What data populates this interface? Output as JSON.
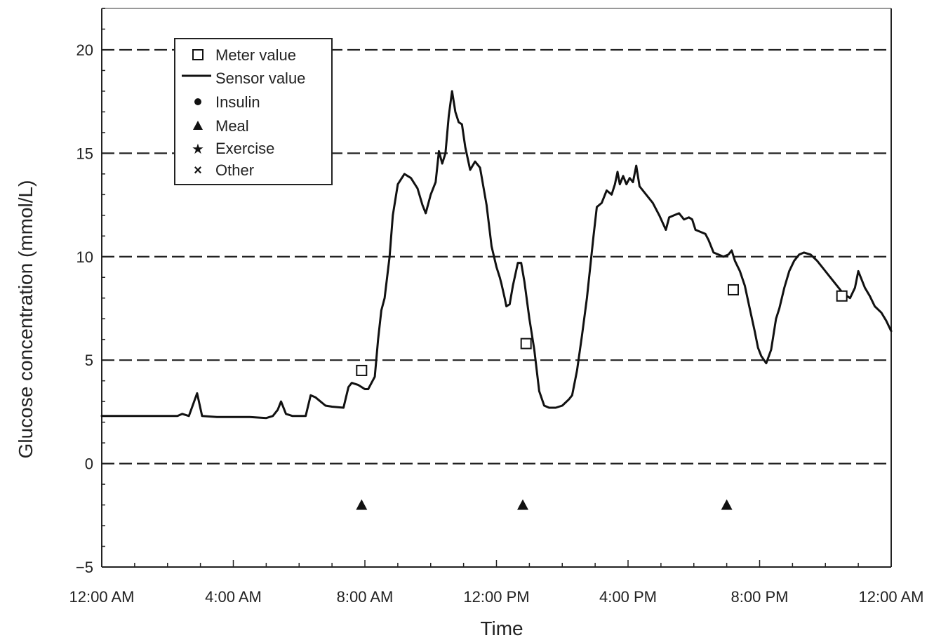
{
  "chart_data": {
    "type": "line",
    "xlabel": "Time",
    "ylabel": "Glucose concentration (mmol/L)",
    "xlim": [
      0,
      24
    ],
    "ylim": [
      -5,
      22
    ],
    "grid": "dashed horizontal lines at 0, 5, 10, 15, 20",
    "x_ticks": [
      {
        "value": 0,
        "label": "12:00 AM"
      },
      {
        "value": 4,
        "label": "4:00 AM"
      },
      {
        "value": 8,
        "label": "8:00 AM"
      },
      {
        "value": 12,
        "label": "12:00 PM"
      },
      {
        "value": 16,
        "label": "4:00 PM"
      },
      {
        "value": 20,
        "label": "8:00 PM"
      },
      {
        "value": 24,
        "label": "12:00 AM"
      }
    ],
    "y_ticks": [
      {
        "value": -5,
        "label": "−5"
      },
      {
        "value": 0,
        "label": "0"
      },
      {
        "value": 5,
        "label": "5"
      },
      {
        "value": 10,
        "label": "10"
      },
      {
        "value": 15,
        "label": "15"
      },
      {
        "value": 20,
        "label": "20"
      }
    ],
    "legend": {
      "placement": "top-left",
      "entries": [
        {
          "symbol": "square",
          "label": "Meter value"
        },
        {
          "symbol": "line",
          "label": "Sensor value"
        },
        {
          "symbol": "circle",
          "label": "Insulin"
        },
        {
          "symbol": "triangle",
          "label": "Meal"
        },
        {
          "symbol": "star",
          "label": "Exercise"
        },
        {
          "symbol": "cross",
          "label": "Other"
        }
      ]
    },
    "sensor_series": {
      "name": "Sensor value",
      "color": "#111111",
      "points": [
        [
          0,
          2.3
        ],
        [
          1,
          2.3
        ],
        [
          2,
          2.3
        ],
        [
          2.3,
          2.3
        ],
        [
          2.45,
          2.4
        ],
        [
          2.65,
          2.3
        ],
        [
          2.9,
          3.4
        ],
        [
          3.05,
          2.3
        ],
        [
          3.5,
          2.25
        ],
        [
          4,
          2.25
        ],
        [
          4.5,
          2.25
        ],
        [
          5,
          2.2
        ],
        [
          5.2,
          2.3
        ],
        [
          5.35,
          2.6
        ],
        [
          5.45,
          3.0
        ],
        [
          5.6,
          2.4
        ],
        [
          5.8,
          2.3
        ],
        [
          6.0,
          2.3
        ],
        [
          6.2,
          2.3
        ],
        [
          6.35,
          3.3
        ],
        [
          6.5,
          3.2
        ],
        [
          6.8,
          2.8
        ],
        [
          7.0,
          2.75
        ],
        [
          7.35,
          2.7
        ],
        [
          7.5,
          3.7
        ],
        [
          7.6,
          3.9
        ],
        [
          7.8,
          3.8
        ],
        [
          8.0,
          3.6
        ],
        [
          8.1,
          3.6
        ],
        [
          8.3,
          4.2
        ],
        [
          8.4,
          6.0
        ],
        [
          8.5,
          7.4
        ],
        [
          8.6,
          8.0
        ],
        [
          8.75,
          10.0
        ],
        [
          8.85,
          12.0
        ],
        [
          9.0,
          13.5
        ],
        [
          9.2,
          14.0
        ],
        [
          9.4,
          13.8
        ],
        [
          9.6,
          13.3
        ],
        [
          9.75,
          12.5
        ],
        [
          9.85,
          12.1
        ],
        [
          10.0,
          13.0
        ],
        [
          10.15,
          13.6
        ],
        [
          10.25,
          15.1
        ],
        [
          10.35,
          14.5
        ],
        [
          10.45,
          15.0
        ],
        [
          10.55,
          16.8
        ],
        [
          10.65,
          18.0
        ],
        [
          10.75,
          17.0
        ],
        [
          10.85,
          16.5
        ],
        [
          10.95,
          16.4
        ],
        [
          11.05,
          15.3
        ],
        [
          11.2,
          14.2
        ],
        [
          11.35,
          14.6
        ],
        [
          11.5,
          14.3
        ],
        [
          11.7,
          12.5
        ],
        [
          11.85,
          10.5
        ],
        [
          12.0,
          9.5
        ],
        [
          12.1,
          9.0
        ],
        [
          12.15,
          8.7
        ],
        [
          12.25,
          8.0
        ],
        [
          12.3,
          7.6
        ],
        [
          12.4,
          7.7
        ],
        [
          12.5,
          8.6
        ],
        [
          12.65,
          9.7
        ],
        [
          12.75,
          9.7
        ],
        [
          12.85,
          8.8
        ],
        [
          13.0,
          7.0
        ],
        [
          13.15,
          5.5
        ],
        [
          13.3,
          3.5
        ],
        [
          13.45,
          2.8
        ],
        [
          13.6,
          2.7
        ],
        [
          13.8,
          2.7
        ],
        [
          14.0,
          2.8
        ],
        [
          14.2,
          3.1
        ],
        [
          14.3,
          3.3
        ],
        [
          14.45,
          4.5
        ],
        [
          14.6,
          6.2
        ],
        [
          14.75,
          8.0
        ],
        [
          14.85,
          9.5
        ],
        [
          14.95,
          11.0
        ],
        [
          15.05,
          12.4
        ],
        [
          15.2,
          12.6
        ],
        [
          15.35,
          13.2
        ],
        [
          15.5,
          13.0
        ],
        [
          15.6,
          13.5
        ],
        [
          15.68,
          14.1
        ],
        [
          15.75,
          13.5
        ],
        [
          15.85,
          13.9
        ],
        [
          15.95,
          13.5
        ],
        [
          16.05,
          13.8
        ],
        [
          16.15,
          13.6
        ],
        [
          16.25,
          14.4
        ],
        [
          16.35,
          13.4
        ],
        [
          16.55,
          13.0
        ],
        [
          16.75,
          12.6
        ],
        [
          16.95,
          12.0
        ],
        [
          17.15,
          11.3
        ],
        [
          17.25,
          11.9
        ],
        [
          17.4,
          12.0
        ],
        [
          17.55,
          12.1
        ],
        [
          17.7,
          11.8
        ],
        [
          17.85,
          11.9
        ],
        [
          17.95,
          11.8
        ],
        [
          18.05,
          11.3
        ],
        [
          18.2,
          11.2
        ],
        [
          18.35,
          11.1
        ],
        [
          18.45,
          10.8
        ],
        [
          18.6,
          10.2
        ],
        [
          18.75,
          10.1
        ],
        [
          18.9,
          10.0
        ],
        [
          19.05,
          10.1
        ],
        [
          19.15,
          10.3
        ],
        [
          19.25,
          9.8
        ],
        [
          19.4,
          9.3
        ],
        [
          19.55,
          8.6
        ],
        [
          19.7,
          7.5
        ],
        [
          19.85,
          6.4
        ],
        [
          19.95,
          5.6
        ],
        [
          20.05,
          5.2
        ],
        [
          20.2,
          4.85
        ],
        [
          20.35,
          5.5
        ],
        [
          20.5,
          7.0
        ],
        [
          20.6,
          7.5
        ],
        [
          20.75,
          8.5
        ],
        [
          20.9,
          9.3
        ],
        [
          21.05,
          9.8
        ],
        [
          21.2,
          10.1
        ],
        [
          21.35,
          10.2
        ],
        [
          21.55,
          10.1
        ],
        [
          21.75,
          9.8
        ],
        [
          21.95,
          9.4
        ],
        [
          22.15,
          9.0
        ],
        [
          22.35,
          8.6
        ],
        [
          22.55,
          8.2
        ],
        [
          22.75,
          8.0
        ],
        [
          22.9,
          8.5
        ],
        [
          23.0,
          9.3
        ],
        [
          23.1,
          8.9
        ],
        [
          23.2,
          8.5
        ],
        [
          23.35,
          8.1
        ],
        [
          23.5,
          7.6
        ],
        [
          23.7,
          7.3
        ],
        [
          23.85,
          6.9
        ],
        [
          24.0,
          6.4
        ]
      ]
    },
    "meter_values": {
      "name": "Meter value",
      "points": [
        [
          7.9,
          4.5
        ],
        [
          12.9,
          5.8
        ],
        [
          19.2,
          8.4
        ],
        [
          22.5,
          8.1
        ]
      ]
    },
    "meals": {
      "name": "Meal",
      "y": -2,
      "x": [
        7.9,
        12.8,
        19.0
      ]
    }
  }
}
